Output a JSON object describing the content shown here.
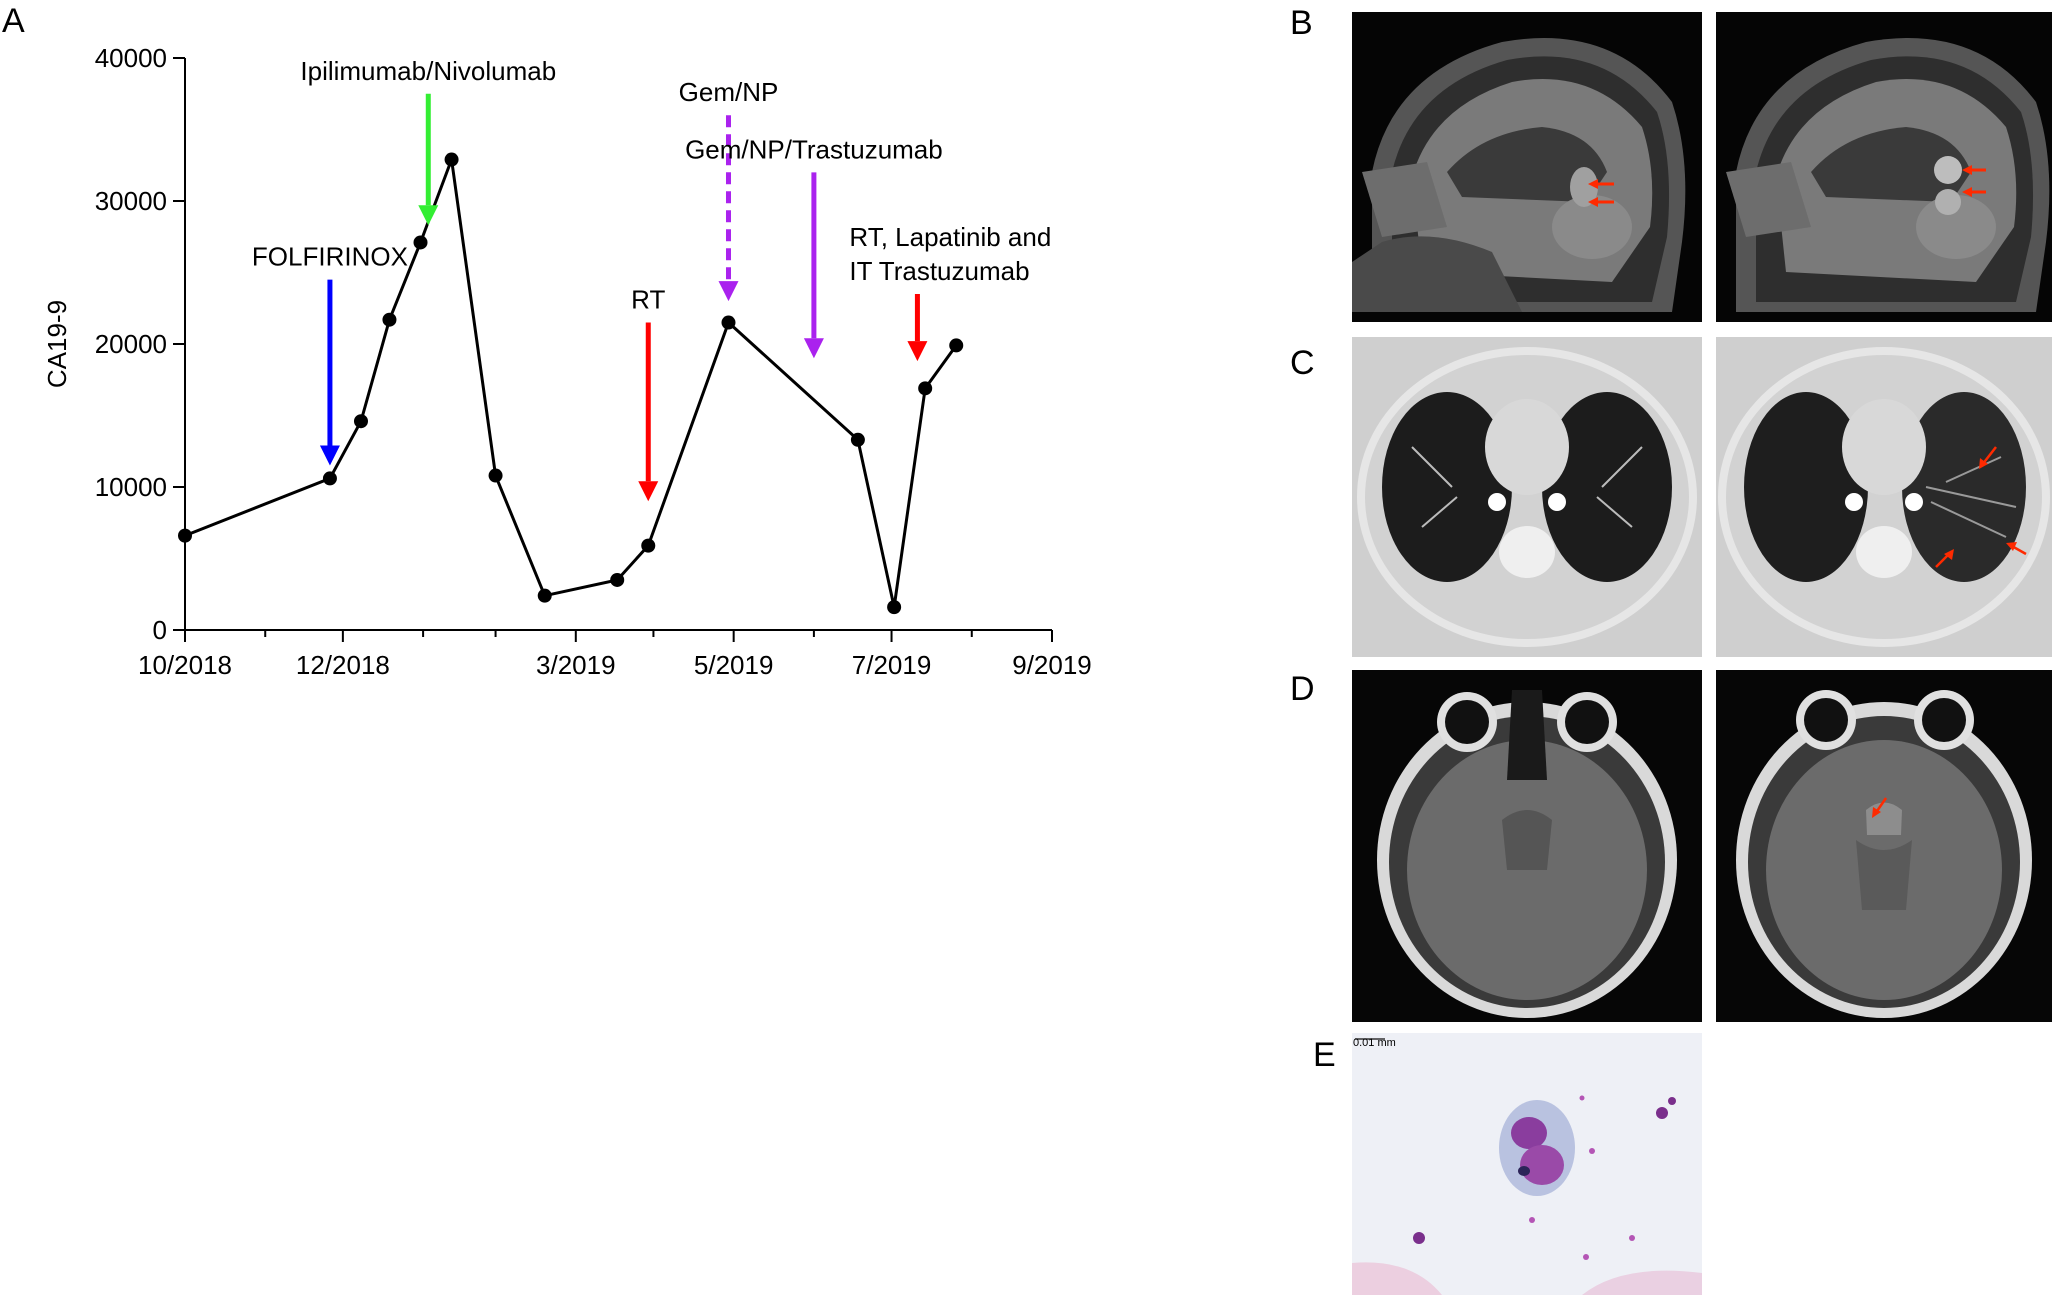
{
  "panel_labels": {
    "a": "A",
    "b": "B",
    "c": "C",
    "d": "D",
    "e": "E"
  },
  "chart_data": {
    "type": "line",
    "ylabel": "CA19-9",
    "ylim": [
      0,
      40000
    ],
    "yticks": [
      0,
      10000,
      20000,
      30000,
      40000
    ],
    "x_tick_labels": [
      {
        "pos": 0,
        "label": "10/2018"
      },
      {
        "pos": 61,
        "label": "12/2018"
      },
      {
        "pos": 151,
        "label": "3/2019"
      },
      {
        "pos": 212,
        "label": "5/2019"
      },
      {
        "pos": 273,
        "label": "7/2019"
      },
      {
        "pos": 335,
        "label": "9/2019"
      }
    ],
    "x_minor_ticks": [
      31,
      92,
      120,
      181,
      243,
      304
    ],
    "xlim": [
      0,
      335
    ],
    "series": [
      {
        "points": [
          [
            0,
            6600
          ],
          [
            56,
            10600
          ],
          [
            68,
            14600
          ],
          [
            79,
            21700
          ],
          [
            91,
            27100
          ],
          [
            103,
            32900
          ],
          [
            120,
            10800
          ],
          [
            139,
            2400
          ],
          [
            167,
            3500
          ],
          [
            179,
            5900
          ],
          [
            210,
            21500
          ],
          [
            260,
            13300
          ],
          [
            274,
            1600
          ],
          [
            286,
            16900
          ],
          [
            298,
            19900
          ]
        ]
      }
    ],
    "annotations": [
      {
        "lines": [
          "FOLFIRINOX"
        ],
        "x": 56,
        "color": "#0000ff",
        "dashed": false,
        "arrow_top": 24500,
        "arrow_tip": 11500
      },
      {
        "lines": [
          "Ipilimumab/Nivolumab"
        ],
        "x": 94,
        "color": "#33ee33",
        "dashed": false,
        "arrow_top": 37500,
        "arrow_tip": 28300
      },
      {
        "lines": [
          "RT"
        ],
        "x": 179,
        "color": "#ff0000",
        "dashed": false,
        "arrow_top": 21500,
        "arrow_tip": 9000
      },
      {
        "lines": [
          "Gem/NP"
        ],
        "x": 210,
        "color": "#aa22ee",
        "dashed": true,
        "arrow_top": 36000,
        "arrow_tip": 23000
      },
      {
        "lines": [
          "Gem/NP/Trastuzumab"
        ],
        "x": 243,
        "color": "#aa22ee",
        "dashed": false,
        "arrow_top": 32000,
        "arrow_tip": 19000
      },
      {
        "lines": [
          "RT, Lapatinib and",
          "IT Trastuzumab"
        ],
        "x": 283,
        "color": "#ff0000",
        "dashed": false,
        "arrow_top": 23500,
        "arrow_tip": 18800
      }
    ]
  },
  "images": {
    "b_left": {
      "kind": "mri-sagittal"
    },
    "b_right": {
      "kind": "mri-sagittal"
    },
    "c_left": {
      "kind": "ct-chest"
    },
    "c_right": {
      "kind": "ct-chest"
    },
    "d_left": {
      "kind": "mri-axial"
    },
    "d_right": {
      "kind": "mri-axial"
    },
    "e": {
      "kind": "cytology",
      "scale_label": "0.01 mm"
    }
  },
  "colors": {
    "marker_arrow": "#ff2a00",
    "stain_purple": "#8a3d9e",
    "line": "#000000"
  }
}
